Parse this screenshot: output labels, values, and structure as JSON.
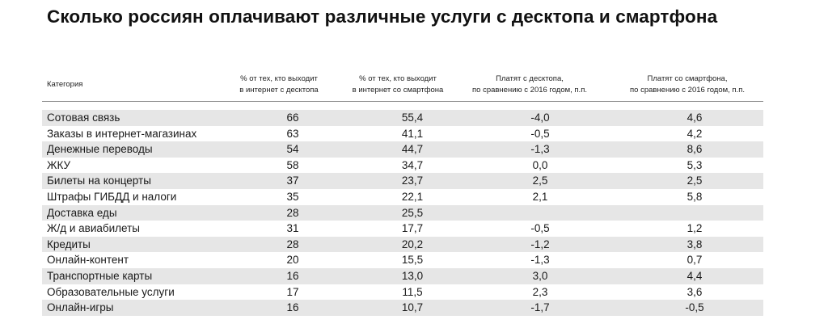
{
  "chart_data": {
    "type": "table",
    "title": "Сколько россиян оплачивают различные услуги с десктопа и смартфона",
    "columns": [
      "Категория",
      "% от тех, кто выходит\nв интернет с десктопа",
      "% от тех, кто выходит\nв интернет со смартфона",
      "Платят с десктопа,\nпо сравнению с 2016 годом, п.п.",
      "Платят со смартфона,\nпо сравнению с 2016 годом, п.п."
    ],
    "rows": [
      [
        "Сотовая связь",
        "66",
        "55,4",
        "-4,0",
        "4,6"
      ],
      [
        "Заказы в интернет-магазинах",
        "63",
        "41,1",
        "-0,5",
        "4,2"
      ],
      [
        "Денежные переводы",
        "54",
        "44,7",
        "-1,3",
        "8,6"
      ],
      [
        "ЖКУ",
        "58",
        "34,7",
        "0,0",
        "5,3"
      ],
      [
        "Билеты на концерты",
        "37",
        "23,7",
        "2,5",
        "2,5"
      ],
      [
        "Штрафы ГИБДД и налоги",
        "35",
        "22,1",
        "2,1",
        "5,8"
      ],
      [
        "Доставка еды",
        "28",
        "25,5",
        "",
        ""
      ],
      [
        "Ж/д и авиабилеты",
        "31",
        "17,7",
        "-0,5",
        "1,2"
      ],
      [
        "Кредиты",
        "28",
        "20,2",
        "-1,2",
        "3,8"
      ],
      [
        "Онлайн-контент",
        "20",
        "15,5",
        "-1,3",
        "0,7"
      ],
      [
        "Транспортные карты",
        "16",
        "13,0",
        "3,0",
        "4,4"
      ],
      [
        "Образовательные услуги",
        "17",
        "11,5",
        "2,3",
        "3,6"
      ],
      [
        "Онлайн-игры",
        "16",
        "10,7",
        "-1,7",
        "-0,5"
      ]
    ],
    "row_shading": "alternating",
    "shade_color": "#e6e6e6"
  }
}
